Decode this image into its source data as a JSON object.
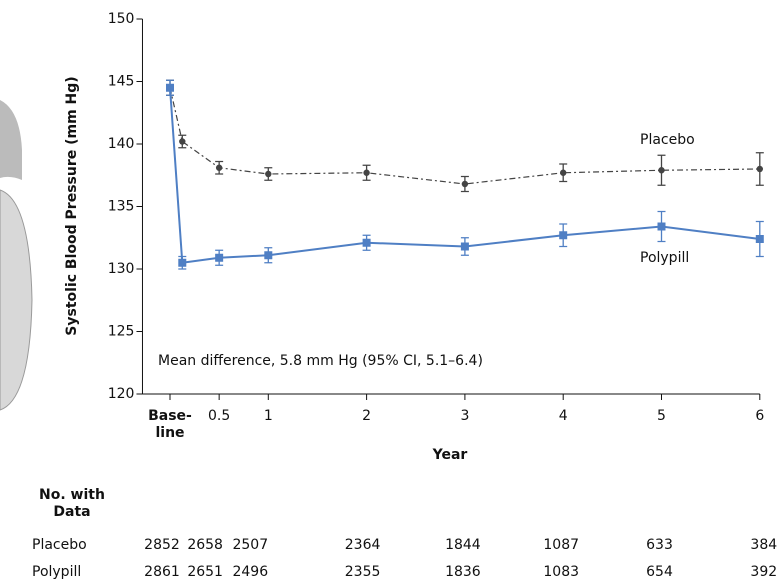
{
  "chart_data": {
    "type": "line",
    "y_label": "Systolic Blood Pressure (mm Hg)",
    "x_label": "Year",
    "annotation": "Mean difference, 5.8 mm Hg (95% CI, 5.1–6.4)",
    "x": [
      0,
      0.125,
      0.5,
      1,
      2,
      3,
      4,
      5,
      6
    ],
    "series": [
      {
        "name": "Placebo",
        "color": "#444444",
        "dash": "6 3 2 3",
        "marker": "circle",
        "values": [
          144.5,
          140.2,
          138.1,
          137.6,
          137.7,
          136.8,
          137.7,
          137.9,
          138.0
        ],
        "errors": [
          0.6,
          0.5,
          0.5,
          0.5,
          0.6,
          0.6,
          0.7,
          1.2,
          1.3
        ]
      },
      {
        "name": "Polypill",
        "color": "#4f7fc4",
        "dash": "none",
        "marker": "square",
        "values": [
          144.5,
          130.5,
          130.9,
          131.1,
          132.1,
          131.8,
          132.7,
          133.4,
          132.4
        ],
        "errors": [
          0.6,
          0.5,
          0.6,
          0.6,
          0.6,
          0.7,
          0.9,
          1.2,
          1.4
        ]
      }
    ],
    "xlim": [
      -0.28,
      6.0
    ],
    "xticks": [
      {
        "value": 0,
        "label": "Base-\nline"
      },
      0.5,
      1,
      2,
      3,
      4,
      5,
      6
    ],
    "ylim": [
      120,
      150
    ],
    "yticks": [
      120,
      125,
      130,
      135,
      140,
      145,
      150
    ],
    "at_risk": {
      "title": "No. with\nData",
      "rows": [
        {
          "name": "Placebo",
          "values": [
            2852,
            2658,
            2507,
            2364,
            1844,
            1087,
            633,
            384
          ]
        },
        {
          "name": "Polypill",
          "values": [
            2861,
            2651,
            2496,
            2355,
            1836,
            1083,
            654,
            392
          ]
        }
      ]
    }
  }
}
